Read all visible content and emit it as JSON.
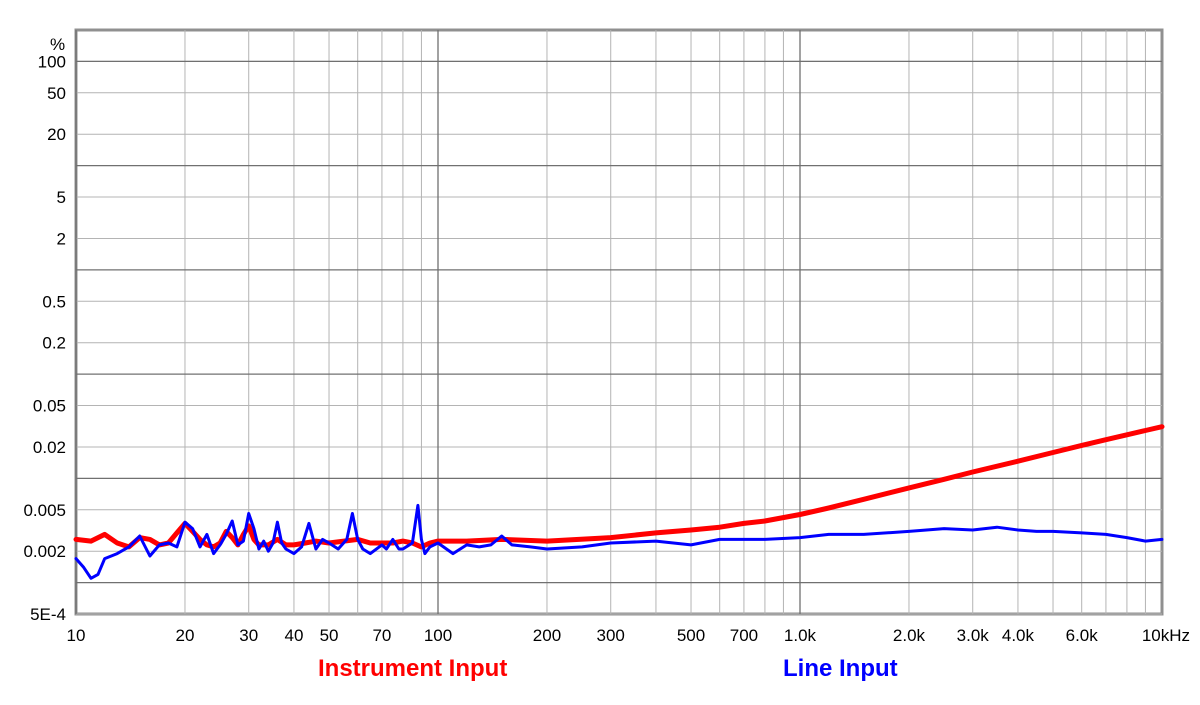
{
  "chart_data": {
    "type": "line",
    "title": "",
    "xlabel": "",
    "ylabel": "",
    "x_scale": "log",
    "y_scale": "log",
    "xlim": [
      10,
      10000
    ],
    "ylim": [
      0.0005,
      200
    ],
    "grid": true,
    "y_unit_label": "%",
    "x_ticks": [
      {
        "value": 10,
        "label": "10"
      },
      {
        "value": 20,
        "label": "20"
      },
      {
        "value": 30,
        "label": "30"
      },
      {
        "value": 40,
        "label": "40"
      },
      {
        "value": 50,
        "label": "50"
      },
      {
        "value": 70,
        "label": "70"
      },
      {
        "value": 100,
        "label": "100"
      },
      {
        "value": 200,
        "label": "200"
      },
      {
        "value": 300,
        "label": "300"
      },
      {
        "value": 500,
        "label": "500"
      },
      {
        "value": 700,
        "label": "700"
      },
      {
        "value": 1000,
        "label": "1.0k"
      },
      {
        "value": 2000,
        "label": "2.0k"
      },
      {
        "value": 3000,
        "label": "3.0k"
      },
      {
        "value": 4000,
        "label": "4.0k"
      },
      {
        "value": 6000,
        "label": "6.0k"
      },
      {
        "value": 10000,
        "label": "10kHz"
      }
    ],
    "y_ticks": [
      {
        "value": 100,
        "label": "100"
      },
      {
        "value": 50,
        "label": "50"
      },
      {
        "value": 20,
        "label": "20"
      },
      {
        "value": 5,
        "label": "5"
      },
      {
        "value": 2,
        "label": "2"
      },
      {
        "value": 0.5,
        "label": "0.5"
      },
      {
        "value": 0.2,
        "label": "0.2"
      },
      {
        "value": 0.05,
        "label": "0.05"
      },
      {
        "value": 0.02,
        "label": "0.02"
      },
      {
        "value": 0.005,
        "label": "0.005"
      },
      {
        "value": 0.002,
        "label": "0.002"
      },
      {
        "value": 0.0005,
        "label": "5E-4"
      }
    ],
    "legend_placement": "bottom",
    "series": [
      {
        "name": "Instrument Input",
        "color": "#ff0000",
        "x": [
          10,
          11,
          12,
          13,
          14,
          15,
          16,
          17,
          18,
          19,
          20,
          21,
          22,
          23,
          24,
          25,
          26,
          27,
          28,
          29,
          30,
          31,
          32,
          34,
          36,
          38,
          40,
          43,
          46,
          50,
          55,
          60,
          65,
          70,
          75,
          80,
          85,
          90,
          95,
          100,
          120,
          150,
          200,
          300,
          400,
          500,
          600,
          700,
          800,
          1000,
          1200,
          1500,
          2000,
          2500,
          3000,
          4000,
          5000,
          6000,
          7000,
          8000,
          9000,
          10000
        ],
        "y": [
          0.0026,
          0.0025,
          0.0029,
          0.0024,
          0.0022,
          0.0027,
          0.0026,
          0.0023,
          0.0024,
          0.003,
          0.0037,
          0.0031,
          0.0026,
          0.0023,
          0.0022,
          0.0024,
          0.0031,
          0.0027,
          0.0023,
          0.0029,
          0.0035,
          0.0026,
          0.0023,
          0.0023,
          0.0026,
          0.0023,
          0.0023,
          0.0024,
          0.0025,
          0.0024,
          0.0025,
          0.0026,
          0.0024,
          0.0024,
          0.0024,
          0.0025,
          0.0024,
          0.0022,
          0.0024,
          0.0025,
          0.0025,
          0.0026,
          0.0025,
          0.0027,
          0.003,
          0.0032,
          0.0034,
          0.0037,
          0.0039,
          0.0045,
          0.0052,
          0.0063,
          0.0081,
          0.0098,
          0.0115,
          0.0146,
          0.0177,
          0.0207,
          0.0235,
          0.0262,
          0.0288,
          0.0313
        ]
      },
      {
        "name": "Line Input",
        "color": "#0000ff",
        "x": [
          10,
          10.5,
          11,
          11.5,
          12,
          13,
          14,
          15,
          16,
          17,
          18,
          19,
          20,
          21,
          22,
          23,
          24,
          25,
          26,
          27,
          28,
          29,
          30,
          31,
          32,
          33,
          34,
          35,
          36,
          37,
          38,
          40,
          42,
          44,
          46,
          48,
          50,
          53,
          56,
          58,
          60,
          62,
          65,
          70,
          72,
          75,
          78,
          80,
          85,
          88,
          90,
          92,
          95,
          100,
          110,
          120,
          130,
          140,
          150,
          160,
          180,
          200,
          250,
          300,
          400,
          500,
          600,
          800,
          1000,
          1200,
          1500,
          2000,
          2500,
          3000,
          3500,
          4000,
          4500,
          5000,
          6000,
          7000,
          8000,
          9000,
          10000
        ],
        "y": [
          0.0017,
          0.0014,
          0.0011,
          0.0012,
          0.0017,
          0.0019,
          0.0022,
          0.0028,
          0.0018,
          0.0023,
          0.0024,
          0.0022,
          0.0038,
          0.0033,
          0.0022,
          0.0029,
          0.0019,
          0.0023,
          0.0029,
          0.0039,
          0.0023,
          0.0025,
          0.0046,
          0.0033,
          0.0021,
          0.0025,
          0.002,
          0.0024,
          0.0038,
          0.0024,
          0.0021,
          0.0019,
          0.0022,
          0.0037,
          0.0021,
          0.0026,
          0.0024,
          0.0021,
          0.0026,
          0.0046,
          0.0026,
          0.0021,
          0.0019,
          0.0023,
          0.0021,
          0.0026,
          0.0021,
          0.0021,
          0.0024,
          0.0055,
          0.0026,
          0.0019,
          0.0022,
          0.0024,
          0.0019,
          0.0023,
          0.0022,
          0.0023,
          0.0028,
          0.0023,
          0.0022,
          0.0021,
          0.0022,
          0.0024,
          0.0025,
          0.0023,
          0.0026,
          0.0026,
          0.0027,
          0.0029,
          0.0029,
          0.0031,
          0.0033,
          0.0032,
          0.0034,
          0.0032,
          0.0031,
          0.0031,
          0.003,
          0.0029,
          0.0027,
          0.0025,
          0.0026
        ]
      }
    ]
  }
}
